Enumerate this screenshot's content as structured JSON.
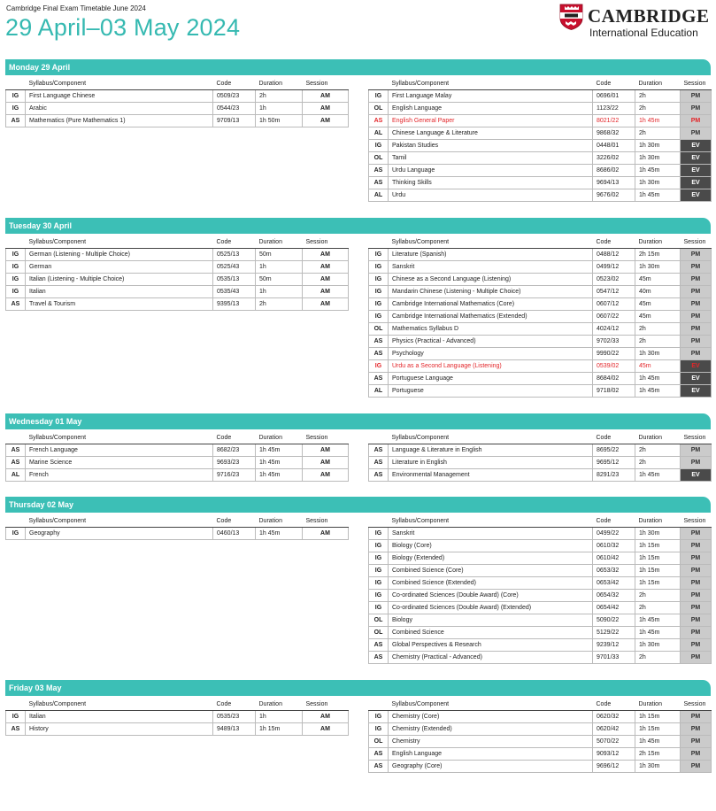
{
  "header": {
    "subtitle": "Cambridge Final Exam Timetable June 2024",
    "title": "29 April–03 May 2024"
  },
  "logo": {
    "wordmark": "CAMBRIDGE",
    "subline": "International Education"
  },
  "columns": {
    "syllabus": "Syllabus/Component",
    "code": "Code",
    "duration": "Duration",
    "session": "Session"
  },
  "colors": {
    "accent": "#3cbfb6",
    "title": "#35b9b1",
    "pm_bg": "#cbcbcb",
    "ev_bg": "#4a4a4a",
    "highlight_text": "#e3262a"
  },
  "days": [
    {
      "label": "Monday 29 April",
      "left": [
        {
          "level": "IG",
          "name": "First Language Chinese",
          "code": "0509/23",
          "duration": "2h",
          "session": "AM"
        },
        {
          "level": "IG",
          "name": "Arabic",
          "code": "0544/23",
          "duration": "1h",
          "session": "AM"
        },
        {
          "level": "AS",
          "name": "Mathematics (Pure Mathematics 1)",
          "code": "9709/13",
          "duration": "1h 50m",
          "session": "AM"
        }
      ],
      "right": [
        {
          "level": "IG",
          "name": "First Language Malay",
          "code": "0696/01",
          "duration": "2h",
          "session": "PM"
        },
        {
          "level": "OL",
          "name": "English Language",
          "code": "1123/22",
          "duration": "2h",
          "session": "PM"
        },
        {
          "level": "AS",
          "name": "English General Paper",
          "code": "8021/22",
          "duration": "1h 45m",
          "session": "PM",
          "highlight": true
        },
        {
          "level": "AL",
          "name": "Chinese Language & Literature",
          "code": "9868/32",
          "duration": "2h",
          "session": "PM"
        },
        {
          "level": "IG",
          "name": "Pakistan Studies",
          "code": "0448/01",
          "duration": "1h 30m",
          "session": "EV"
        },
        {
          "level": "OL",
          "name": "Tamil",
          "code": "3226/02",
          "duration": "1h 30m",
          "session": "EV"
        },
        {
          "level": "AS",
          "name": "Urdu Language",
          "code": "8686/02",
          "duration": "1h 45m",
          "session": "EV"
        },
        {
          "level": "AS",
          "name": "Thinking Skills",
          "code": "9694/13",
          "duration": "1h 30m",
          "session": "EV"
        },
        {
          "level": "AL",
          "name": "Urdu",
          "code": "9676/02",
          "duration": "1h 45m",
          "session": "EV"
        }
      ]
    },
    {
      "label": "Tuesday 30 April",
      "left": [
        {
          "level": "IG",
          "name": "German (Listening - Multiple Choice)",
          "code": "0525/13",
          "duration": "50m",
          "session": "AM"
        },
        {
          "level": "IG",
          "name": "German",
          "code": "0525/43",
          "duration": "1h",
          "session": "AM"
        },
        {
          "level": "IG",
          "name": "Italian (Listening - Multiple Choice)",
          "code": "0535/13",
          "duration": "50m",
          "session": "AM"
        },
        {
          "level": "IG",
          "name": "Italian",
          "code": "0535/43",
          "duration": "1h",
          "session": "AM"
        },
        {
          "level": "AS",
          "name": "Travel & Tourism",
          "code": "9395/13",
          "duration": "2h",
          "session": "AM"
        }
      ],
      "right": [
        {
          "level": "IG",
          "name": "Literature (Spanish)",
          "code": "0488/12",
          "duration": "2h 15m",
          "session": "PM"
        },
        {
          "level": "IG",
          "name": "Sanskrit",
          "code": "0499/12",
          "duration": "1h 30m",
          "session": "PM"
        },
        {
          "level": "IG",
          "name": "Chinese as a Second Language (Listening)",
          "code": "0523/02",
          "duration": "45m",
          "session": "PM"
        },
        {
          "level": "IG",
          "name": "Mandarin Chinese (Listening - Multiple Choice)",
          "code": "0547/12",
          "duration": "40m",
          "session": "PM"
        },
        {
          "level": "IG",
          "name": "Cambridge International Mathematics (Core)",
          "code": "0607/12",
          "duration": "45m",
          "session": "PM"
        },
        {
          "level": "IG",
          "name": "Cambridge International Mathematics (Extended)",
          "code": "0607/22",
          "duration": "45m",
          "session": "PM"
        },
        {
          "level": "OL",
          "name": "Mathematics Syllabus D",
          "code": "4024/12",
          "duration": "2h",
          "session": "PM"
        },
        {
          "level": "AS",
          "name": "Physics (Practical - Advanced)",
          "code": "9702/33",
          "duration": "2h",
          "session": "PM"
        },
        {
          "level": "AS",
          "name": "Psychology",
          "code": "9990/22",
          "duration": "1h 30m",
          "session": "PM"
        },
        {
          "level": "IG",
          "name": "Urdu as a Second Language (Listening)",
          "code": "0539/02",
          "duration": "45m",
          "session": "EV",
          "highlight": true
        },
        {
          "level": "AS",
          "name": "Portuguese Language",
          "code": "8684/02",
          "duration": "1h 45m",
          "session": "EV"
        },
        {
          "level": "AL",
          "name": "Portuguese",
          "code": "9718/02",
          "duration": "1h 45m",
          "session": "EV"
        }
      ]
    },
    {
      "label": "Wednesday 01 May",
      "left": [
        {
          "level": "AS",
          "name": "French Language",
          "code": "8682/23",
          "duration": "1h 45m",
          "session": "AM"
        },
        {
          "level": "AS",
          "name": "Marine Science",
          "code": "9693/23",
          "duration": "1h 45m",
          "session": "AM"
        },
        {
          "level": "AL",
          "name": "French",
          "code": "9716/23",
          "duration": "1h 45m",
          "session": "AM"
        }
      ],
      "right": [
        {
          "level": "AS",
          "name": "Language & Literature in English",
          "code": "8695/22",
          "duration": "2h",
          "session": "PM"
        },
        {
          "level": "AS",
          "name": "Literature in English",
          "code": "9695/12",
          "duration": "2h",
          "session": "PM"
        },
        {
          "level": "AS",
          "name": "Environmental Management",
          "code": "8291/23",
          "duration": "1h 45m",
          "session": "EV"
        }
      ]
    },
    {
      "label": "Thursday 02 May",
      "left": [
        {
          "level": "IG",
          "name": "Geography",
          "code": "0460/13",
          "duration": "1h 45m",
          "session": "AM"
        }
      ],
      "right": [
        {
          "level": "IG",
          "name": "Sanskrit",
          "code": "0499/22",
          "duration": "1h 30m",
          "session": "PM"
        },
        {
          "level": "IG",
          "name": "Biology (Core)",
          "code": "0610/32",
          "duration": "1h 15m",
          "session": "PM"
        },
        {
          "level": "IG",
          "name": "Biology (Extended)",
          "code": "0610/42",
          "duration": "1h 15m",
          "session": "PM"
        },
        {
          "level": "IG",
          "name": "Combined Science (Core)",
          "code": "0653/32",
          "duration": "1h 15m",
          "session": "PM"
        },
        {
          "level": "IG",
          "name": "Combined Science (Extended)",
          "code": "0653/42",
          "duration": "1h 15m",
          "session": "PM"
        },
        {
          "level": "IG",
          "name": "Co-ordinated Sciences (Double Award) (Core)",
          "code": "0654/32",
          "duration": "2h",
          "session": "PM"
        },
        {
          "level": "IG",
          "name": "Co-ordinated Sciences (Double Award) (Extended)",
          "code": "0654/42",
          "duration": "2h",
          "session": "PM"
        },
        {
          "level": "OL",
          "name": "Biology",
          "code": "5090/22",
          "duration": "1h 45m",
          "session": "PM"
        },
        {
          "level": "OL",
          "name": "Combined Science",
          "code": "5129/22",
          "duration": "1h 45m",
          "session": "PM"
        },
        {
          "level": "AS",
          "name": "Global Perspectives & Research",
          "code": "9239/12",
          "duration": "1h 30m",
          "session": "PM"
        },
        {
          "level": "AS",
          "name": "Chemistry (Practical - Advanced)",
          "code": "9701/33",
          "duration": "2h",
          "session": "PM"
        }
      ]
    },
    {
      "label": "Friday 03 May",
      "left": [
        {
          "level": "IG",
          "name": "Italian",
          "code": "0535/23",
          "duration": "1h",
          "session": "AM"
        },
        {
          "level": "AS",
          "name": "History",
          "code": "9489/13",
          "duration": "1h 15m",
          "session": "AM"
        }
      ],
      "right": [
        {
          "level": "IG",
          "name": "Chemistry (Core)",
          "code": "0620/32",
          "duration": "1h 15m",
          "session": "PM"
        },
        {
          "level": "IG",
          "name": "Chemistry (Extended)",
          "code": "0620/42",
          "duration": "1h 15m",
          "session": "PM"
        },
        {
          "level": "OL",
          "name": "Chemistry",
          "code": "5070/22",
          "duration": "1h 45m",
          "session": "PM"
        },
        {
          "level": "AS",
          "name": "English Language",
          "code": "9093/12",
          "duration": "2h 15m",
          "session": "PM"
        },
        {
          "level": "AS",
          "name": "Geography (Core)",
          "code": "9696/12",
          "duration": "1h 30m",
          "session": "PM"
        }
      ]
    }
  ]
}
